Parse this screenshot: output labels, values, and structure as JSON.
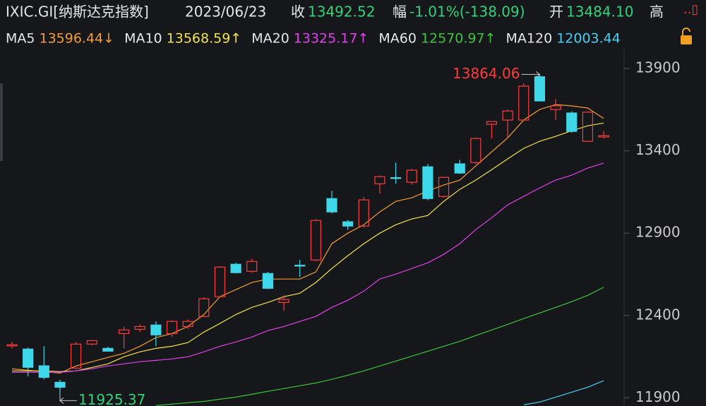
{
  "header": {
    "symbol": "IXIC.GI[纳斯达克指数]",
    "date": "2023/06/23",
    "close_label": "收",
    "close": "13492.52",
    "change_label": "幅",
    "change": "-1.01%(-138.09)",
    "open_label": "开",
    "open": "13484.10",
    "high_label": "高"
  },
  "chart_data": {
    "type": "candlestick",
    "up_color": "#ff3b3b",
    "down_color": "#3fd7ea",
    "max_color": "#ff3b3b",
    "min_color": "#33d17a",
    "ylim": [
      11850,
      14016
    ],
    "yticks": [
      11900,
      12400,
      12900,
      13400,
      13900
    ],
    "candles": {
      "open": [
        12215,
        12196,
        12094,
        11994,
        12080,
        12226,
        12200,
        12290,
        12316,
        12342,
        12290,
        12333,
        12394,
        12514,
        12711,
        12668,
        12655,
        12479,
        12705,
        12737,
        13110,
        12969,
        12943,
        13200,
        13237,
        13209,
        13303,
        13123,
        13321,
        13329,
        13561,
        13587,
        13587,
        13850,
        13651,
        13630,
        13458,
        13484.1
      ],
      "high": [
        12240,
        12205,
        12213,
        12010,
        12240,
        12250,
        12210,
        12333,
        12345,
        12364,
        12370,
        12375,
        12510,
        12700,
        12720,
        12745,
        12665,
        12522,
        12737,
        12985,
        13157,
        12980,
        13120,
        13250,
        13329,
        13290,
        13320,
        13240,
        13345,
        13480,
        13580,
        13650,
        13810,
        13864.06,
        13715,
        13640,
        13640,
        13520
      ],
      "low": [
        12200,
        12030,
        12012,
        11925.37,
        12075,
        12220,
        12180,
        12200,
        12300,
        12213,
        12270,
        12320,
        12390,
        12510,
        12655,
        12660,
        12560,
        12428,
        12634,
        12730,
        13020,
        12920,
        12935,
        13140,
        13200,
        13195,
        13100,
        13115,
        13260,
        13320,
        13475,
        13480,
        13585,
        13700,
        13587,
        13510,
        13455,
        13475
      ],
      "close": [
        12222,
        12085,
        12024,
        11964,
        12226,
        12247,
        12183,
        12312,
        12333,
        12282,
        12364,
        12364,
        12501,
        12694,
        12660,
        12728,
        12565,
        12497,
        12700,
        12977,
        13029,
        12943,
        13102,
        13243,
        13232,
        13282,
        13110,
        13239,
        13265,
        13475,
        13578,
        13642,
        13793,
        13703,
        13673,
        13518,
        13635,
        13492.52
      ]
    },
    "series": [
      {
        "name": "MA5",
        "color": "#f39c33",
        "label": "13596.44↓",
        "values": [
          12076,
          12067,
          12059,
          12050,
          12093,
          12119,
          12145,
          12170,
          12213,
          12265,
          12290,
          12333,
          12406,
          12514,
          12557,
          12600,
          12621,
          12621,
          12621,
          12664,
          12836,
          12900,
          12951,
          13029,
          13093,
          13115,
          13157,
          13192,
          13222,
          13308,
          13394,
          13479,
          13587,
          13651,
          13681,
          13673,
          13660,
          13596.44
        ]
      },
      {
        "name": "MA10",
        "color": "#f2e34a",
        "label": "13568.59↑",
        "values": [
          12063,
          12063,
          12063,
          12059,
          12063,
          12084,
          12106,
          12149,
          12179,
          12200,
          12213,
          12235,
          12299,
          12351,
          12406,
          12449,
          12479,
          12514,
          12535,
          12600,
          12685,
          12763,
          12836,
          12900,
          12951,
          12986,
          13007,
          13093,
          13166,
          13222,
          13286,
          13351,
          13415,
          13458,
          13488,
          13522,
          13552,
          13568.59
        ]
      },
      {
        "name": "MA20",
        "color": "#e040e8",
        "label": "13325.17↑",
        "values": [
          12054,
          12054,
          12054,
          12054,
          12063,
          12076,
          12093,
          12106,
          12119,
          12127,
          12136,
          12149,
          12179,
          12213,
          12239,
          12269,
          12308,
          12333,
          12364,
          12394,
          12449,
          12492,
          12548,
          12621,
          12651,
          12685,
          12720,
          12771,
          12836,
          12921,
          12994,
          13072,
          13123,
          13175,
          13222,
          13252,
          13295,
          13325.17
        ]
      },
      {
        "name": "MA60",
        "color": "#3cc43c",
        "label": "12570.97↑",
        "values": [
          null,
          null,
          null,
          null,
          null,
          null,
          null,
          null,
          null,
          11853,
          11861,
          11870,
          11878,
          11891,
          11904,
          11921,
          11939,
          11956,
          11973,
          11990,
          12012,
          12037,
          12063,
          12093,
          12123,
          12153,
          12183,
          12213,
          12243,
          12278,
          12312,
          12346,
          12381,
          12415,
          12449,
          12484,
          12522,
          12570.97
        ]
      },
      {
        "name": "MA120",
        "color": "#46d0f5",
        "label": "12003.44",
        "values": [
          null,
          null,
          null,
          null,
          null,
          null,
          null,
          null,
          null,
          null,
          null,
          null,
          null,
          null,
          null,
          null,
          null,
          null,
          null,
          null,
          null,
          null,
          null,
          null,
          null,
          null,
          null,
          null,
          null,
          null,
          null,
          null,
          11857,
          11874,
          11904,
          11934,
          11964,
          12003.44
        ]
      }
    ]
  }
}
